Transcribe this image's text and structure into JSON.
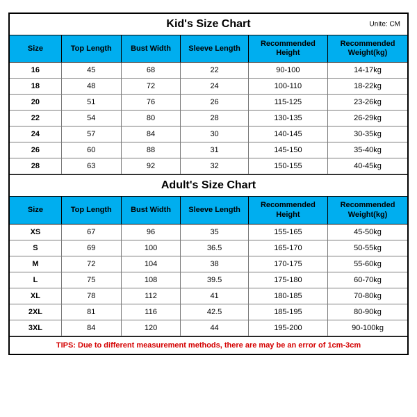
{
  "unit_label": "Unite: CM",
  "tips_text": "TIPS: Due to different measurement methods, there are may be an error of 1cm-3cm",
  "columns": [
    {
      "label": "Size"
    },
    {
      "label": "Top Length"
    },
    {
      "label": "Bust Width"
    },
    {
      "label": "Sleeve Length"
    },
    {
      "label": "Recommended Height"
    },
    {
      "label": "Recommended Weight(kg)"
    }
  ],
  "kid": {
    "title": "Kid's Size Chart",
    "rows": [
      [
        "16",
        "45",
        "68",
        "22",
        "90-100",
        "14-17kg"
      ],
      [
        "18",
        "48",
        "72",
        "24",
        "100-110",
        "18-22kg"
      ],
      [
        "20",
        "51",
        "76",
        "26",
        "115-125",
        "23-26kg"
      ],
      [
        "22",
        "54",
        "80",
        "28",
        "130-135",
        "26-29kg"
      ],
      [
        "24",
        "57",
        "84",
        "30",
        "140-145",
        "30-35kg"
      ],
      [
        "26",
        "60",
        "88",
        "31",
        "145-150",
        "35-40kg"
      ],
      [
        "28",
        "63",
        "92",
        "32",
        "150-155",
        "40-45kg"
      ]
    ]
  },
  "adult": {
    "title": "Adult's Size Chart",
    "rows": [
      [
        "XS",
        "67",
        "96",
        "35",
        "155-165",
        "45-50kg"
      ],
      [
        "S",
        "69",
        "100",
        "36.5",
        "165-170",
        "50-55kg"
      ],
      [
        "M",
        "72",
        "104",
        "38",
        "170-175",
        "55-60kg"
      ],
      [
        "L",
        "75",
        "108",
        "39.5",
        "175-180",
        "60-70kg"
      ],
      [
        "XL",
        "78",
        "112",
        "41",
        "180-185",
        "70-80kg"
      ],
      [
        "2XL",
        "81",
        "116",
        "42.5",
        "185-195",
        "80-90kg"
      ],
      [
        "3XL",
        "84",
        "120",
        "44",
        "195-200",
        "90-100kg"
      ]
    ]
  },
  "style": {
    "header_bg": "#00aeef",
    "tips_color": "#d40000",
    "outer_border": "#000000",
    "cell_border": "#7a7a7a",
    "font_family": "Arial"
  }
}
